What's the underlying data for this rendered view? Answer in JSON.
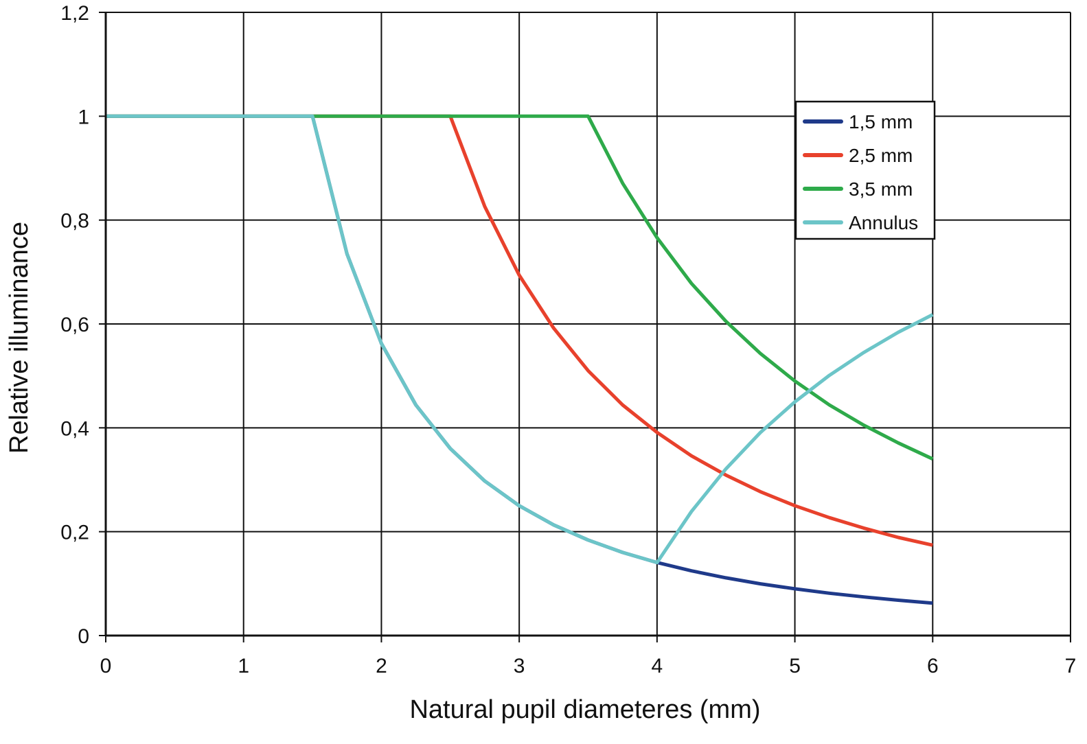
{
  "chart_data": {
    "type": "line",
    "title": "",
    "xlabel": "Natural pupil diameteres (mm)",
    "ylabel": "Relative illuminance",
    "xlim": [
      0,
      7
    ],
    "ylim": [
      0,
      1.2
    ],
    "xticks": [
      "0",
      "1",
      "2",
      "3",
      "4",
      "5",
      "6",
      "7"
    ],
    "yticks": [
      "0",
      "0,2",
      "0,4",
      "0,6",
      "0,8",
      "1",
      "1,2"
    ],
    "grid": true,
    "legend_position": "top-right",
    "x": [
      0,
      0.5,
      1,
      1.5,
      1.75,
      2,
      2.25,
      2.5,
      2.75,
      3,
      3.25,
      3.5,
      3.75,
      4,
      4.25,
      4.5,
      4.75,
      5,
      5.25,
      5.5,
      5.75,
      6
    ],
    "series": [
      {
        "name": "1,5 mm",
        "color": "#1f3a8a",
        "values": [
          1,
          1,
          1,
          1,
          0.735,
          0.5625,
          0.444,
          0.36,
          0.2975,
          0.25,
          0.213,
          0.184,
          0.16,
          0.1406,
          0.1246,
          0.1111,
          0.0997,
          0.09,
          0.0816,
          0.0744,
          0.0681,
          0.0625
        ]
      },
      {
        "name": "2,5 mm",
        "color": "#e8412c",
        "values": [
          1,
          1,
          1,
          1,
          1,
          1,
          1,
          1,
          0.826,
          0.694,
          0.592,
          0.51,
          0.444,
          0.391,
          0.346,
          0.309,
          0.277,
          0.25,
          0.227,
          0.207,
          0.189,
          0.174
        ]
      },
      {
        "name": "3,5 mm",
        "color": "#2eaa4a",
        "values": [
          1,
          1,
          1,
          1,
          1,
          1,
          1,
          1,
          1,
          1,
          1,
          1,
          0.871,
          0.766,
          0.678,
          0.605,
          0.543,
          0.49,
          0.444,
          0.405,
          0.371,
          0.34
        ]
      },
      {
        "name": "Annulus",
        "color": "#6cc5c8",
        "values": [
          1,
          1,
          1,
          1,
          0.735,
          0.5625,
          0.444,
          0.36,
          0.2975,
          0.25,
          0.213,
          0.184,
          0.16,
          0.1406,
          0.239,
          0.321,
          0.391,
          0.45,
          0.501,
          0.545,
          0.584,
          0.618
        ]
      }
    ]
  }
}
